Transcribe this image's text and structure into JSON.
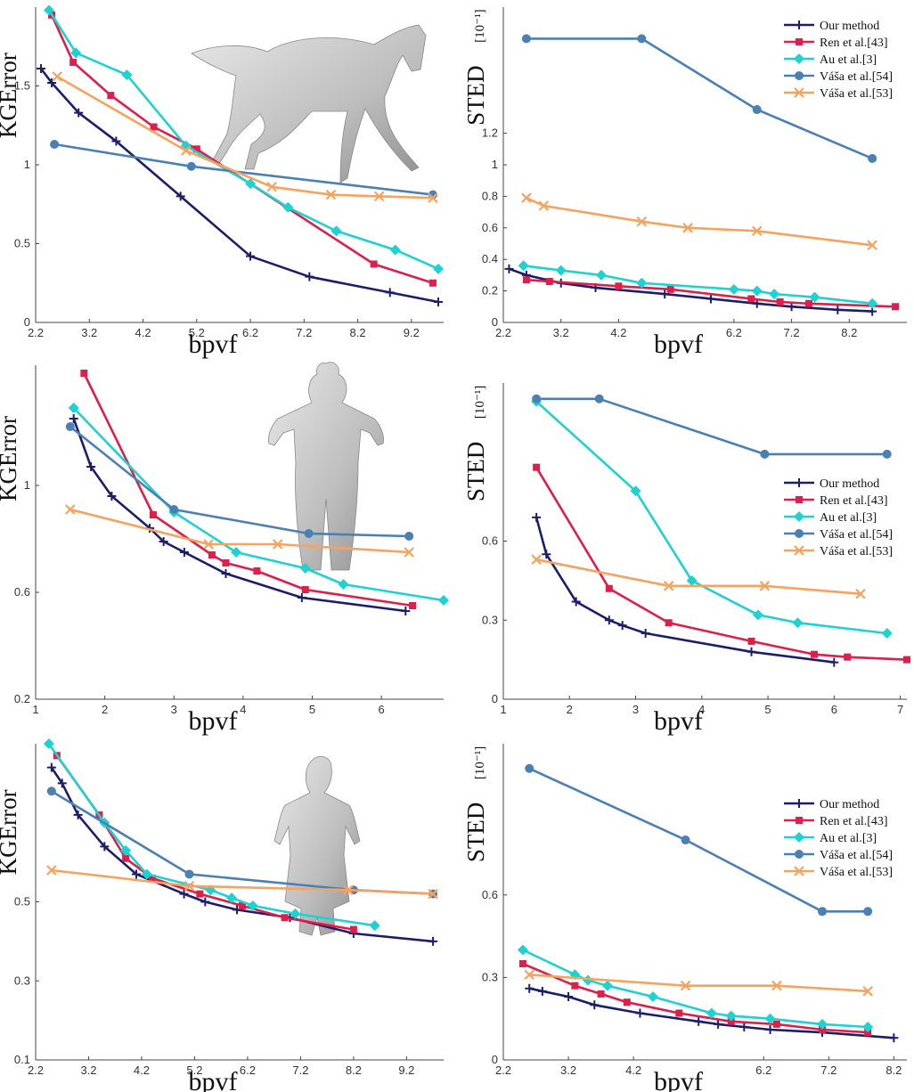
{
  "colors": {
    "Our method": "#1c1d6b",
    "Ren et al.[43]": "#dc1f4b",
    "Au et al.[3]": "#1fd2d2",
    "Váša et al.[54]": "#4a80b4",
    "Váša et al.[53]": "#f5a35f"
  },
  "markers": {
    "Our method": "plus",
    "Ren et al.[43]": "square",
    "Au et al.[3]": "diamond",
    "Váša et al.[54]": "circle",
    "Váša et al.[53]": "x"
  },
  "chart_data": [
    {
      "type": "line",
      "xlabel": "bpvf",
      "ylabel": "KGError",
      "xlim": [
        2.2,
        9.8
      ],
      "ylim": [
        0,
        2.0
      ],
      "xticks": [
        2.2,
        3.2,
        4.2,
        5.2,
        6.2,
        7.2,
        8.2,
        9.2
      ],
      "yticks": [
        0,
        0.5,
        1,
        1.5
      ],
      "legend": false,
      "series": [
        {
          "name": "Our method",
          "x": [
            2.3,
            2.5,
            3.0,
            3.7,
            4.9,
            6.2,
            7.3,
            8.8,
            9.7
          ],
          "y": [
            1.61,
            1.52,
            1.33,
            1.15,
            0.8,
            0.42,
            0.29,
            0.19,
            0.13
          ]
        },
        {
          "name": "Ren et al.[43]",
          "x": [
            2.5,
            2.9,
            3.6,
            4.4,
            5.2,
            8.5,
            9.6
          ],
          "y": [
            1.95,
            1.65,
            1.44,
            1.24,
            1.1,
            0.37,
            0.25
          ]
        },
        {
          "name": "Au et al.[3]",
          "x": [
            2.45,
            2.95,
            3.9,
            5.0,
            6.2,
            6.9,
            7.8,
            8.9,
            9.7
          ],
          "y": [
            1.98,
            1.71,
            1.57,
            1.12,
            0.88,
            0.73,
            0.58,
            0.46,
            0.34
          ]
        },
        {
          "name": "Váša et al.[54]",
          "x": [
            2.55,
            5.1,
            9.6
          ],
          "y": [
            1.13,
            0.99,
            0.81
          ]
        },
        {
          "name": "Váša et al.[53]",
          "x": [
            2.6,
            5.0,
            6.6,
            7.7,
            8.6,
            9.6
          ],
          "y": [
            1.56,
            1.09,
            0.86,
            0.81,
            0.8,
            0.79
          ]
        }
      ]
    },
    {
      "type": "line",
      "xlabel": "bpvf",
      "ylabel": "STED",
      "ylabel_unit": "[10⁻¹]",
      "xlim": [
        2.2,
        9.2
      ],
      "ylim": [
        0,
        2.0
      ],
      "xticks": [
        2.2,
        3.2,
        4.2,
        6.2,
        7.2,
        8.2
      ],
      "yticks": [
        0,
        0.2,
        0.4,
        0.6,
        0.8,
        1,
        1.2
      ],
      "legend": "top-right",
      "series": [
        {
          "name": "Our method",
          "x": [
            2.3,
            2.6,
            3.2,
            3.8,
            5.0,
            5.8,
            6.6,
            7.2,
            8.0,
            8.6
          ],
          "y": [
            0.34,
            0.3,
            0.25,
            0.22,
            0.18,
            0.15,
            0.12,
            0.1,
            0.08,
            0.07
          ]
        },
        {
          "name": "Ren et al.[43]",
          "x": [
            2.6,
            3.0,
            4.2,
            5.1,
            6.5,
            7.0,
            7.5,
            9.0
          ],
          "y": [
            0.27,
            0.26,
            0.23,
            0.21,
            0.15,
            0.13,
            0.12,
            0.1
          ]
        },
        {
          "name": "Au et al.[3]",
          "x": [
            2.55,
            3.2,
            3.9,
            4.6,
            6.2,
            6.6,
            6.9,
            7.6,
            8.6
          ],
          "y": [
            0.36,
            0.33,
            0.3,
            0.25,
            0.21,
            0.2,
            0.18,
            0.16,
            0.12
          ]
        },
        {
          "name": "Váša et al.[54]",
          "x": [
            2.6,
            4.6,
            6.6,
            8.6
          ],
          "y": [
            1.8,
            1.8,
            1.35,
            1.04
          ]
        },
        {
          "name": "Váša et al.[53]",
          "x": [
            2.6,
            2.9,
            4.6,
            5.4,
            6.6,
            8.6
          ],
          "y": [
            0.79,
            0.74,
            0.64,
            0.6,
            0.58,
            0.49
          ]
        }
      ]
    },
    {
      "type": "line",
      "xlabel": "bpvf",
      "ylabel": "KGError",
      "xlim": [
        1,
        6.9
      ],
      "ylim": [
        0.2,
        1.45
      ],
      "xticks": [
        1,
        2,
        3,
        4,
        5,
        6
      ],
      "yticks": [
        0.2,
        0.6,
        1
      ],
      "legend": false,
      "series": [
        {
          "name": "Our method",
          "x": [
            1.55,
            1.8,
            2.1,
            2.65,
            2.85,
            3.15,
            3.75,
            4.85,
            6.35
          ],
          "y": [
            1.25,
            1.07,
            0.96,
            0.84,
            0.79,
            0.75,
            0.67,
            0.58,
            0.53
          ]
        },
        {
          "name": "Ren et al.[43]",
          "x": [
            1.7,
            2.7,
            3.55,
            3.75,
            4.2,
            4.9,
            6.45
          ],
          "y": [
            1.42,
            0.89,
            0.74,
            0.71,
            0.68,
            0.61,
            0.55
          ]
        },
        {
          "name": "Au et al.[3]",
          "x": [
            1.55,
            3.0,
            3.9,
            4.9,
            5.45,
            6.9
          ],
          "y": [
            1.29,
            0.9,
            0.75,
            0.69,
            0.63,
            0.57
          ]
        },
        {
          "name": "Váša et al.[54]",
          "x": [
            1.5,
            3.0,
            4.95,
            6.4
          ],
          "y": [
            1.22,
            0.91,
            0.82,
            0.81
          ]
        },
        {
          "name": "Váša et al.[53]",
          "x": [
            1.5,
            3.5,
            4.5,
            6.4
          ],
          "y": [
            0.91,
            0.78,
            0.78,
            0.75
          ]
        }
      ]
    },
    {
      "type": "line",
      "xlabel": "bpvf",
      "ylabel": "STED",
      "ylabel_unit": "[10⁻¹]",
      "xlim": [
        1,
        7.1
      ],
      "ylim": [
        0,
        1.2
      ],
      "xticks": [
        1,
        2,
        3,
        4,
        5,
        6,
        7
      ],
      "yticks": [
        0,
        0.3,
        0.6
      ],
      "legend": "right",
      "series": [
        {
          "name": "Our method",
          "x": [
            1.5,
            1.65,
            2.1,
            2.6,
            2.8,
            3.15,
            4.75,
            6.0
          ],
          "y": [
            0.69,
            0.55,
            0.37,
            0.3,
            0.28,
            0.25,
            0.18,
            0.14
          ]
        },
        {
          "name": "Ren et al.[43]",
          "x": [
            1.5,
            2.6,
            3.5,
            4.75,
            5.7,
            6.2,
            7.1
          ],
          "y": [
            0.88,
            0.42,
            0.29,
            0.22,
            0.17,
            0.16,
            0.15
          ]
        },
        {
          "name": "Au et al.[3]",
          "x": [
            1.5,
            3.0,
            3.85,
            4.85,
            5.45,
            6.8
          ],
          "y": [
            1.13,
            0.79,
            0.45,
            0.32,
            0.29,
            0.25
          ]
        },
        {
          "name": "Váša et al.[54]",
          "x": [
            1.5,
            2.45,
            4.95,
            6.8
          ],
          "y": [
            1.14,
            1.14,
            0.93,
            0.93
          ]
        },
        {
          "name": "Váša et al.[53]",
          "x": [
            1.5,
            3.5,
            4.95,
            6.4
          ],
          "y": [
            0.53,
            0.43,
            0.43,
            0.4
          ]
        }
      ]
    },
    {
      "type": "line",
      "xlabel": "bpvf",
      "ylabel": "KGError",
      "xlim": [
        2.2,
        9.9
      ],
      "ylim": [
        0.1,
        0.9
      ],
      "xticks": [
        2.2,
        3.2,
        4.2,
        5.2,
        6.2,
        7.2,
        8.2,
        9.2
      ],
      "yticks": [
        0.1,
        0.3,
        0.5
      ],
      "legend": false,
      "series": [
        {
          "name": "Our method",
          "x": [
            2.5,
            2.7,
            3.0,
            3.5,
            4.1,
            5.0,
            5.4,
            6.0,
            7.0,
            8.2,
            9.7
          ],
          "y": [
            0.84,
            0.8,
            0.72,
            0.64,
            0.57,
            0.52,
            0.5,
            0.48,
            0.46,
            0.42,
            0.4
          ]
        },
        {
          "name": "Ren et al.[43]",
          "x": [
            2.6,
            3.4,
            3.9,
            4.4,
            5.3,
            6.1,
            6.9,
            8.2
          ],
          "y": [
            0.87,
            0.72,
            0.61,
            0.56,
            0.52,
            0.49,
            0.46,
            0.43
          ]
        },
        {
          "name": "Au et al.[3]",
          "x": [
            2.45,
            3.5,
            3.9,
            4.3,
            5.5,
            5.9,
            6.3,
            7.1,
            8.6
          ],
          "y": [
            0.9,
            0.7,
            0.63,
            0.57,
            0.53,
            0.51,
            0.49,
            0.47,
            0.44
          ]
        },
        {
          "name": "Váša et al.[54]",
          "x": [
            2.5,
            5.1,
            8.2,
            9.7
          ],
          "y": [
            0.78,
            0.57,
            0.53,
            0.52
          ]
        },
        {
          "name": "Váša et al.[53]",
          "x": [
            2.5,
            5.1,
            8.1,
            9.7
          ],
          "y": [
            0.58,
            0.54,
            0.53,
            0.52
          ]
        }
      ]
    },
    {
      "type": "line",
      "xlabel": "bpvf",
      "ylabel": "STED",
      "ylabel_unit": "[10⁻¹]",
      "xlim": [
        2.2,
        8.4
      ],
      "ylim": [
        0,
        1.15
      ],
      "xticks": [
        2.2,
        3.2,
        4.2,
        6.2,
        7.2,
        8.2
      ],
      "yticks": [
        0,
        0.3,
        0.6
      ],
      "legend": "top-right",
      "series": [
        {
          "name": "Our method",
          "x": [
            2.6,
            2.8,
            3.2,
            3.6,
            4.3,
            5.2,
            5.5,
            5.9,
            6.3,
            7.1,
            8.2
          ],
          "y": [
            0.26,
            0.25,
            0.23,
            0.2,
            0.17,
            0.14,
            0.13,
            0.12,
            0.11,
            0.1,
            0.08
          ]
        },
        {
          "name": "Ren et al.[43]",
          "x": [
            2.5,
            3.3,
            3.7,
            4.1,
            4.9,
            5.7,
            6.4,
            7.1,
            7.8
          ],
          "y": [
            0.35,
            0.27,
            0.24,
            0.21,
            0.17,
            0.14,
            0.13,
            0.11,
            0.1
          ]
        },
        {
          "name": "Au et al.[3]",
          "x": [
            2.5,
            3.3,
            3.5,
            3.8,
            4.5,
            5.4,
            5.7,
            6.3,
            7.1,
            7.8
          ],
          "y": [
            0.4,
            0.31,
            0.29,
            0.27,
            0.23,
            0.17,
            0.16,
            0.15,
            0.13,
            0.12
          ]
        },
        {
          "name": "Váša et al.[54]",
          "x": [
            2.6,
            5.0,
            7.1,
            7.8
          ],
          "y": [
            1.06,
            0.8,
            0.54,
            0.54
          ]
        },
        {
          "name": "Váša et al.[53]",
          "x": [
            2.6,
            5.0,
            6.4,
            7.8
          ],
          "y": [
            0.31,
            0.27,
            0.27,
            0.25
          ]
        }
      ]
    }
  ]
}
